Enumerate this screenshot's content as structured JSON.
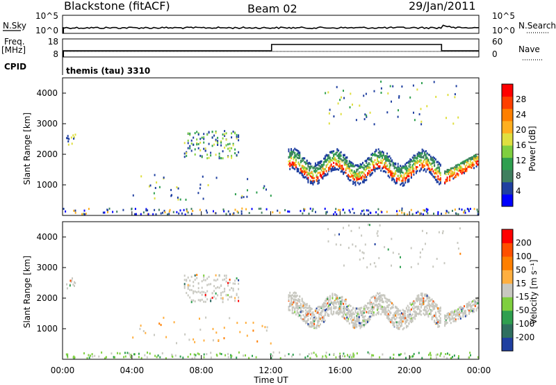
{
  "header": {
    "station": "Blackstone (fitACF)",
    "beam": "Beam 02",
    "date": "29/Jan/2011"
  },
  "top_panels": {
    "nsky_label": "N.Sky",
    "nsearch_label": "N.Search",
    "nsky_ticks": [
      "10^5",
      "10^0"
    ],
    "nsearch_ticks": [
      "10^5",
      "10^0"
    ],
    "freq_label": "Freq.",
    "freq_unit": "[MHz]",
    "freq_ticks": [
      "18",
      "8"
    ],
    "nave_label": "Nave",
    "nave_ticks": [
      "60",
      "0"
    ],
    "cpid_label": "CPID",
    "cpid_text": "themis (tau) 3310"
  },
  "chart_data": [
    {
      "type": "heatmap",
      "name": "power",
      "ylabel": "Slant Range [km]",
      "yticks": [
        "4000",
        "3000",
        "2000",
        "1000"
      ],
      "ylim": [
        0,
        4500
      ],
      "xlim": [
        0,
        24
      ],
      "colorbar_label": "Power [dB]",
      "colorbar_ticks": [
        "28",
        "24",
        "20",
        "16",
        "12",
        "8",
        "4"
      ],
      "colors": [
        "#0000ff",
        "#1f3fa0",
        "#3f7f5f",
        "#2f9f4f",
        "#7fcf3f",
        "#dfdf3f",
        "#ffaf1f",
        "#ff7f00",
        "#ff3f00",
        "#ff0000"
      ]
    },
    {
      "type": "heatmap",
      "name": "velocity",
      "ylabel": "Slant Range [km]",
      "yticks": [
        "4000",
        "3000",
        "2000",
        "1000"
      ],
      "ylim": [
        0,
        4500
      ],
      "xlim": [
        0,
        24
      ],
      "colorbar_label": "Velocity [m s⁻¹]",
      "colorbar_ticks": [
        "200",
        "100",
        "50",
        "15",
        "-15",
        "-50",
        "-100",
        "-200"
      ],
      "colors": [
        "#1f3fa0",
        "#2f6f5f",
        "#2f9f4f",
        "#7fcf3f",
        "#c8c8c0",
        "#ffaf3f",
        "#ff7f00",
        "#ff4f00",
        "#ff0000"
      ]
    }
  ],
  "xaxis": {
    "ticks": [
      "00:00",
      "04:00",
      "08:00",
      "12:00",
      "16:00",
      "20:00",
      "00:00"
    ],
    "label": "Time UT"
  }
}
